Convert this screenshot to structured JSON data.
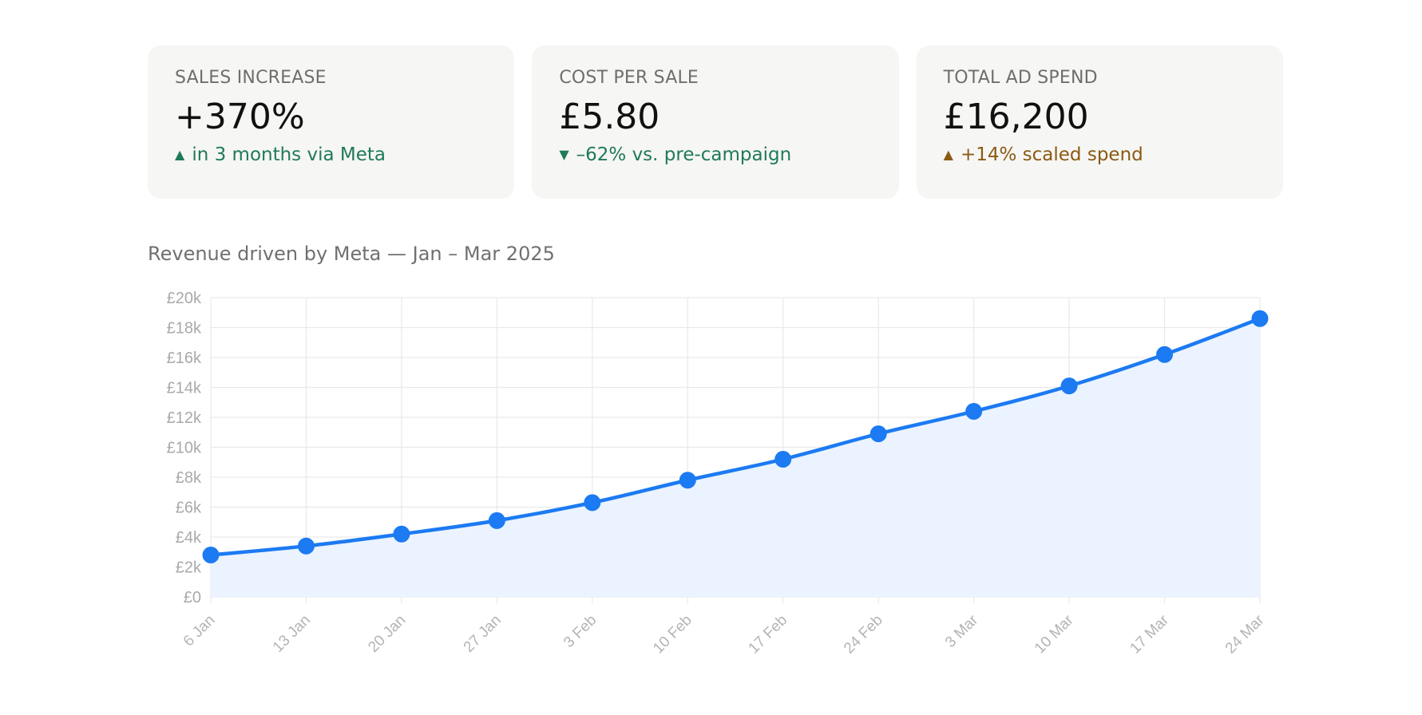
{
  "cards": [
    {
      "label": "SALES INCREASE",
      "value": "+370%",
      "change": "in 3 months via Meta",
      "direction_icon": "triangle-up-icon",
      "color": "#1f7a5a"
    },
    {
      "label": "COST PER SALE",
      "value": "£5.80",
      "change": "–62% vs. pre-campaign",
      "direction_icon": "triangle-down-icon",
      "color": "#1f7a5a"
    },
    {
      "label": "TOTAL AD SPEND",
      "value": "£16,200",
      "change": "+14% scaled spend",
      "direction_icon": "triangle-up-icon",
      "color": "#8a5a13"
    }
  ],
  "chart_data": {
    "type": "area",
    "title": "Revenue driven by Meta — Jan – Mar 2025",
    "xlabel": "",
    "ylabel": "",
    "categories": [
      "6 Jan",
      "13 Jan",
      "20 Jan",
      "27 Jan",
      "3 Feb",
      "10 Feb",
      "17 Feb",
      "24 Feb",
      "3 Mar",
      "10 Mar",
      "17 Mar",
      "24 Mar"
    ],
    "series": [
      {
        "values": [
          2800,
          3400,
          4200,
          5100,
          6300,
          7800,
          9200,
          10900,
          12400,
          14100,
          16200,
          18600
        ],
        "color": "#1c7af2",
        "fill": "#eaf3ff"
      }
    ],
    "ylim": [
      0,
      20000
    ],
    "yticks": [
      0,
      2000,
      4000,
      6000,
      8000,
      10000,
      12000,
      14000,
      16000,
      18000,
      20000
    ],
    "ytick_labels": [
      "£0",
      "£2k",
      "£4k",
      "£6k",
      "£8k",
      "£10k",
      "£12k",
      "£14k",
      "£16k",
      "£18k",
      "£20k"
    ],
    "grid": true,
    "legend": "none"
  }
}
